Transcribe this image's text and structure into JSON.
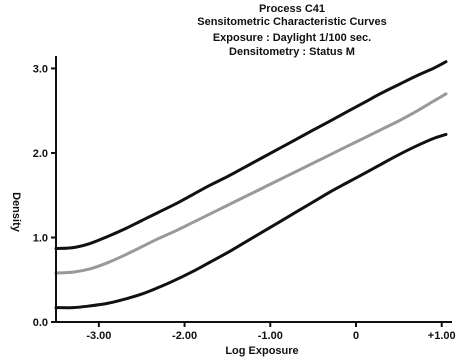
{
  "chart_data": {
    "type": "line",
    "title_lines": [
      "Process C41",
      "Sensitometric Characteristic Curves",
      "Exposure : Daylight 1/100 sec.",
      "Densitometry : Status M"
    ],
    "xlabel": "Log Exposure",
    "ylabel": "Density",
    "xlim": [
      -3.5,
      1.05
    ],
    "ylim": [
      0.0,
      3.1
    ],
    "xticks": [
      {
        "value": -3.0,
        "label": "-3.00"
      },
      {
        "value": -2.0,
        "label": "-2.00"
      },
      {
        "value": -1.0,
        "label": "-1.00"
      },
      {
        "value": 0.0,
        "label": "0"
      },
      {
        "value": 1.0,
        "label": "+1.00"
      }
    ],
    "yticks": [
      {
        "value": 0.0,
        "label": "0.0"
      },
      {
        "value": 1.0,
        "label": "1.0"
      },
      {
        "value": 2.0,
        "label": "2.0"
      },
      {
        "value": 3.0,
        "label": "3.0"
      }
    ],
    "grid": false,
    "series": [
      {
        "color": "#111111",
        "x": [
          -3.5,
          -3.3,
          -3.1,
          -2.9,
          -2.7,
          -2.5,
          -2.3,
          -2.1,
          -1.9,
          -1.7,
          -1.5,
          -1.3,
          -1.1,
          -0.9,
          -0.7,
          -0.5,
          -0.3,
          -0.1,
          0.1,
          0.3,
          0.5,
          0.7,
          0.9,
          1.05
        ],
        "y": [
          0.87,
          0.88,
          0.93,
          1.01,
          1.1,
          1.2,
          1.3,
          1.4,
          1.51,
          1.62,
          1.72,
          1.83,
          1.94,
          2.05,
          2.16,
          2.27,
          2.38,
          2.49,
          2.6,
          2.71,
          2.81,
          2.91,
          3.0,
          3.08
        ]
      },
      {
        "color": "#999999",
        "x": [
          -3.5,
          -3.3,
          -3.1,
          -2.9,
          -2.7,
          -2.5,
          -2.3,
          -2.1,
          -1.9,
          -1.7,
          -1.5,
          -1.3,
          -1.1,
          -0.9,
          -0.7,
          -0.5,
          -0.3,
          -0.1,
          0.1,
          0.3,
          0.5,
          0.7,
          0.9,
          1.05
        ],
        "y": [
          0.58,
          0.59,
          0.63,
          0.7,
          0.79,
          0.89,
          0.99,
          1.08,
          1.18,
          1.28,
          1.38,
          1.48,
          1.58,
          1.68,
          1.78,
          1.88,
          1.98,
          2.08,
          2.18,
          2.28,
          2.38,
          2.49,
          2.61,
          2.7
        ]
      },
      {
        "color": "#111111",
        "x": [
          -3.5,
          -3.3,
          -3.1,
          -2.9,
          -2.7,
          -2.5,
          -2.3,
          -2.1,
          -1.9,
          -1.7,
          -1.5,
          -1.3,
          -1.1,
          -0.9,
          -0.7,
          -0.5,
          -0.3,
          -0.1,
          0.1,
          0.3,
          0.5,
          0.7,
          0.9,
          1.05
        ],
        "y": [
          0.17,
          0.17,
          0.19,
          0.22,
          0.27,
          0.33,
          0.41,
          0.5,
          0.6,
          0.71,
          0.82,
          0.94,
          1.06,
          1.18,
          1.3,
          1.42,
          1.54,
          1.65,
          1.76,
          1.87,
          1.98,
          2.08,
          2.17,
          2.22
        ]
      }
    ]
  }
}
